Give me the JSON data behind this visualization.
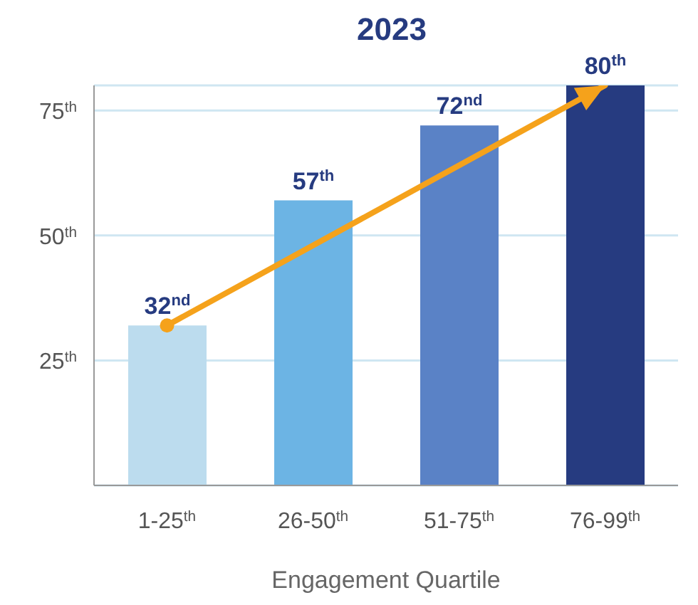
{
  "chart_data": {
    "type": "bar",
    "title": "2023",
    "xlabel": "Engagement Quartile",
    "categories": [
      "1-25$^{th}$",
      "26-50$^{th}$",
      "51-75$^{th}$",
      "76-99$^{th}$"
    ],
    "series": [
      {
        "values": [
          32,
          57,
          72,
          80
        ],
        "colors": [
          "#bcdcee",
          "#6cb4e4",
          "#5a82c6",
          "#263b80"
        ],
        "value_labels": [
          "32$^{nd}$",
          "57$^{th}$",
          "72$^{nd}$",
          "80$^{th}$"
        ]
      },
      {
        "type": "line",
        "x": [
          "1-25$^{th}$",
          "76-99$^{th}$"
        ],
        "values": [
          32,
          80
        ],
        "color": "#f5a21b",
        "marker": "circle"
      }
    ],
    "ylim": [
      0,
      80
    ],
    "yticks": [
      {
        "value": 25,
        "label": "25$^{th}$"
      },
      {
        "value": 50,
        "label": "50$^{th}$"
      },
      {
        "value": 75,
        "label": "75$^{th}$"
      }
    ],
    "grid": "y",
    "legend": false
  }
}
